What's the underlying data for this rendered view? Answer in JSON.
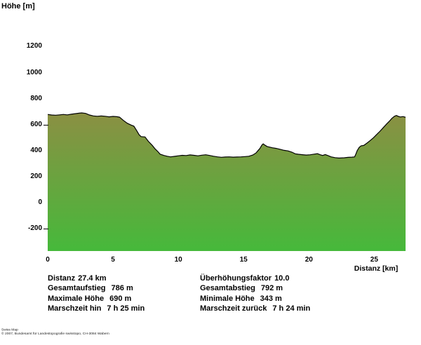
{
  "header": {
    "title": "Höhe [m]"
  },
  "stats": {
    "left": [
      {
        "label": "Distanz",
        "value": "27.4 km"
      },
      {
        "label": "Gesamtaufstieg",
        "value": "786 m"
      },
      {
        "label": "Maximale Höhe",
        "value": "690 m"
      },
      {
        "label": "Marschzeit hin",
        "value": "7 h 25 min"
      }
    ],
    "right": [
      {
        "label": "Überhöhungsfaktor",
        "value": "10.0"
      },
      {
        "label": "Gesamtabstieg",
        "value": "792 m"
      },
      {
        "label": "Minimale Höhe",
        "value": "343 m"
      },
      {
        "label": "Marschzeit zurück",
        "value": "7 h 24 min"
      }
    ]
  },
  "footer": {
    "line1": "Swiss Map",
    "line2": "© 2007, Bundesamt für Landestopografie swisstopo, CH-3084 Wabern"
  },
  "chart_data": {
    "type": "area",
    "title": "Höhe [m]",
    "xlabel": "Distanz [km]",
    "ylabel": "Höhe [m]",
    "xlim": [
      0,
      27.4
    ],
    "ylim": [
      -372,
      1262
    ],
    "x_ticks": [
      0,
      5,
      10,
      15,
      20,
      25
    ],
    "y_tick_labels": [
      1200,
      1000,
      800,
      600,
      400,
      200,
      0,
      -200
    ],
    "y_tick_marks": [
      600,
      -200
    ],
    "grid": false,
    "legend": "none",
    "fill_top_color": "#8d8e43",
    "fill_bottom_color": "#46b93b",
    "line_color": "#000000",
    "max_elevation_m": 690,
    "min_elevation_m": 343,
    "profile_km_m": [
      [
        0,
        678
      ],
      [
        0.3,
        674
      ],
      [
        0.6,
        672
      ],
      [
        0.9,
        675
      ],
      [
        1.2,
        678
      ],
      [
        1.5,
        675
      ],
      [
        1.8,
        680
      ],
      [
        2.1,
        684
      ],
      [
        2.4,
        688
      ],
      [
        2.6,
        690
      ],
      [
        2.9,
        686
      ],
      [
        3.2,
        674
      ],
      [
        3.5,
        667
      ],
      [
        3.8,
        664
      ],
      [
        4.1,
        667
      ],
      [
        4.4,
        664
      ],
      [
        4.7,
        660
      ],
      [
        5.0,
        663
      ],
      [
        5.3,
        661
      ],
      [
        5.5,
        657
      ],
      [
        5.8,
        632
      ],
      [
        6.1,
        610
      ],
      [
        6.4,
        596
      ],
      [
        6.6,
        588
      ],
      [
        6.8,
        556
      ],
      [
        7.0,
        522
      ],
      [
        7.15,
        508
      ],
      [
        7.45,
        505
      ],
      [
        7.7,
        472
      ],
      [
        8.0,
        441
      ],
      [
        8.2,
        416
      ],
      [
        8.45,
        391
      ],
      [
        8.6,
        373
      ],
      [
        8.9,
        363
      ],
      [
        9.15,
        357
      ],
      [
        9.4,
        352
      ],
      [
        9.7,
        356
      ],
      [
        10.0,
        360
      ],
      [
        10.3,
        364
      ],
      [
        10.6,
        362
      ],
      [
        10.9,
        367
      ],
      [
        11.2,
        364
      ],
      [
        11.5,
        360
      ],
      [
        11.8,
        365
      ],
      [
        12.1,
        368
      ],
      [
        12.4,
        363
      ],
      [
        12.7,
        357
      ],
      [
        13.0,
        352
      ],
      [
        13.3,
        349
      ],
      [
        13.6,
        351
      ],
      [
        13.9,
        352
      ],
      [
        14.2,
        350
      ],
      [
        14.5,
        351
      ],
      [
        14.8,
        352
      ],
      [
        15.1,
        354
      ],
      [
        15.4,
        357
      ],
      [
        15.7,
        366
      ],
      [
        15.95,
        382
      ],
      [
        16.1,
        400
      ],
      [
        16.25,
        418
      ],
      [
        16.4,
        443
      ],
      [
        16.5,
        452
      ],
      [
        16.65,
        441
      ],
      [
        16.8,
        432
      ],
      [
        17.0,
        427
      ],
      [
        17.2,
        422
      ],
      [
        17.5,
        417
      ],
      [
        17.8,
        410
      ],
      [
        18.1,
        402
      ],
      [
        18.4,
        398
      ],
      [
        18.7,
        388
      ],
      [
        18.95,
        376
      ],
      [
        19.2,
        372
      ],
      [
        19.5,
        369
      ],
      [
        19.8,
        366
      ],
      [
        20.1,
        368
      ],
      [
        20.4,
        373
      ],
      [
        20.65,
        377
      ],
      [
        20.85,
        369
      ],
      [
        21.05,
        363
      ],
      [
        21.25,
        370
      ],
      [
        21.45,
        362
      ],
      [
        21.7,
        352
      ],
      [
        22.0,
        346
      ],
      [
        22.3,
        343
      ],
      [
        22.7,
        345
      ],
      [
        23.0,
        348
      ],
      [
        23.3,
        350
      ],
      [
        23.5,
        352
      ],
      [
        23.6,
        375
      ],
      [
        23.7,
        400
      ],
      [
        23.85,
        425
      ],
      [
        24.0,
        437
      ],
      [
        24.2,
        440
      ],
      [
        24.45,
        458
      ],
      [
        24.7,
        478
      ],
      [
        24.95,
        500
      ],
      [
        25.2,
        525
      ],
      [
        25.45,
        550
      ],
      [
        25.7,
        578
      ],
      [
        25.95,
        605
      ],
      [
        26.15,
        625
      ],
      [
        26.35,
        648
      ],
      [
        26.55,
        664
      ],
      [
        26.7,
        670
      ],
      [
        26.85,
        663
      ],
      [
        27.0,
        659
      ],
      [
        27.2,
        662
      ],
      [
        27.4,
        656
      ]
    ]
  }
}
